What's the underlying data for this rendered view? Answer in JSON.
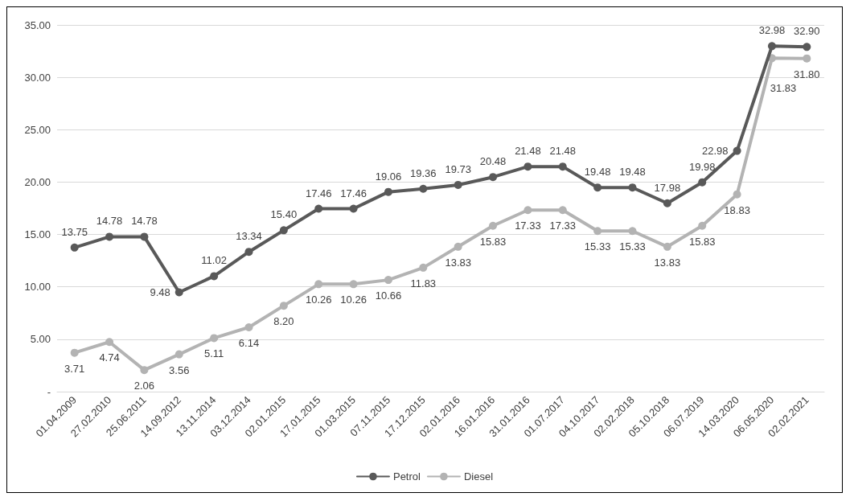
{
  "chart_data": {
    "type": "line",
    "categories": [
      "01.04.2009",
      "27.02.2010",
      "25.06.2011",
      "14.09.2012",
      "13.11.2014",
      "03.12.2014",
      "02.01.2015",
      "17.01.2015",
      "01.03.2015",
      "07.11.2015",
      "17.12.2015",
      "02.01.2016",
      "16.01.2016",
      "31.01.2016",
      "01.07.2017",
      "04.10.2017",
      "02.02.2018",
      "05.10.2018",
      "06.07.2019",
      "14.03.2020",
      "06.05.2020",
      "02.02.2021"
    ],
    "series": [
      {
        "name": "Petrol",
        "color": "#595959",
        "values": [
          13.75,
          14.78,
          14.78,
          9.48,
          11.02,
          13.34,
          15.4,
          17.46,
          17.46,
          19.06,
          19.36,
          19.73,
          20.48,
          21.48,
          21.48,
          19.48,
          19.48,
          17.98,
          19.98,
          22.98,
          32.98,
          32.9
        ],
        "value_labels": [
          "13.75",
          "14.78",
          "14.78",
          "9.48",
          "11.02",
          "13.34",
          "15.40",
          "17.46",
          "17.46",
          "19.06",
          "19.36",
          "19.73",
          "20.48",
          "21.48",
          "21.48",
          "19.48",
          "19.48",
          "17.98",
          "19.98",
          "22.98",
          "32.98",
          "32.90"
        ]
      },
      {
        "name": "Diesel",
        "color": "#b3b3b3",
        "values": [
          3.71,
          4.74,
          2.06,
          3.56,
          5.11,
          6.14,
          8.2,
          10.26,
          10.26,
          10.66,
          11.83,
          13.83,
          15.83,
          17.33,
          17.33,
          15.33,
          15.33,
          13.83,
          15.83,
          18.83,
          31.83,
          31.8
        ],
        "value_labels": [
          "3.71",
          "4.74",
          "2.06",
          "3.56",
          "5.11",
          "6.14",
          "8.20",
          "10.26",
          "10.26",
          "10.66",
          "11.83",
          "13.83",
          "15.83",
          "17.33",
          "17.33",
          "15.33",
          "15.33",
          "13.83",
          "15.83",
          "18.83",
          "31.83",
          "31.80"
        ]
      }
    ],
    "ylim": [
      0,
      35
    ],
    "yticks": [
      {
        "value": 0,
        "label": "-"
      },
      {
        "value": 5,
        "label": "5.00"
      },
      {
        "value": 10,
        "label": "10.00"
      },
      {
        "value": 15,
        "label": "15.00"
      },
      {
        "value": 20,
        "label": "20.00"
      },
      {
        "value": 25,
        "label": "25.00"
      },
      {
        "value": 30,
        "label": "30.00"
      },
      {
        "value": 35,
        "label": "35.00"
      }
    ],
    "grid": "y",
    "legend": "bottom",
    "marker": "circle",
    "line_style": "solid"
  }
}
